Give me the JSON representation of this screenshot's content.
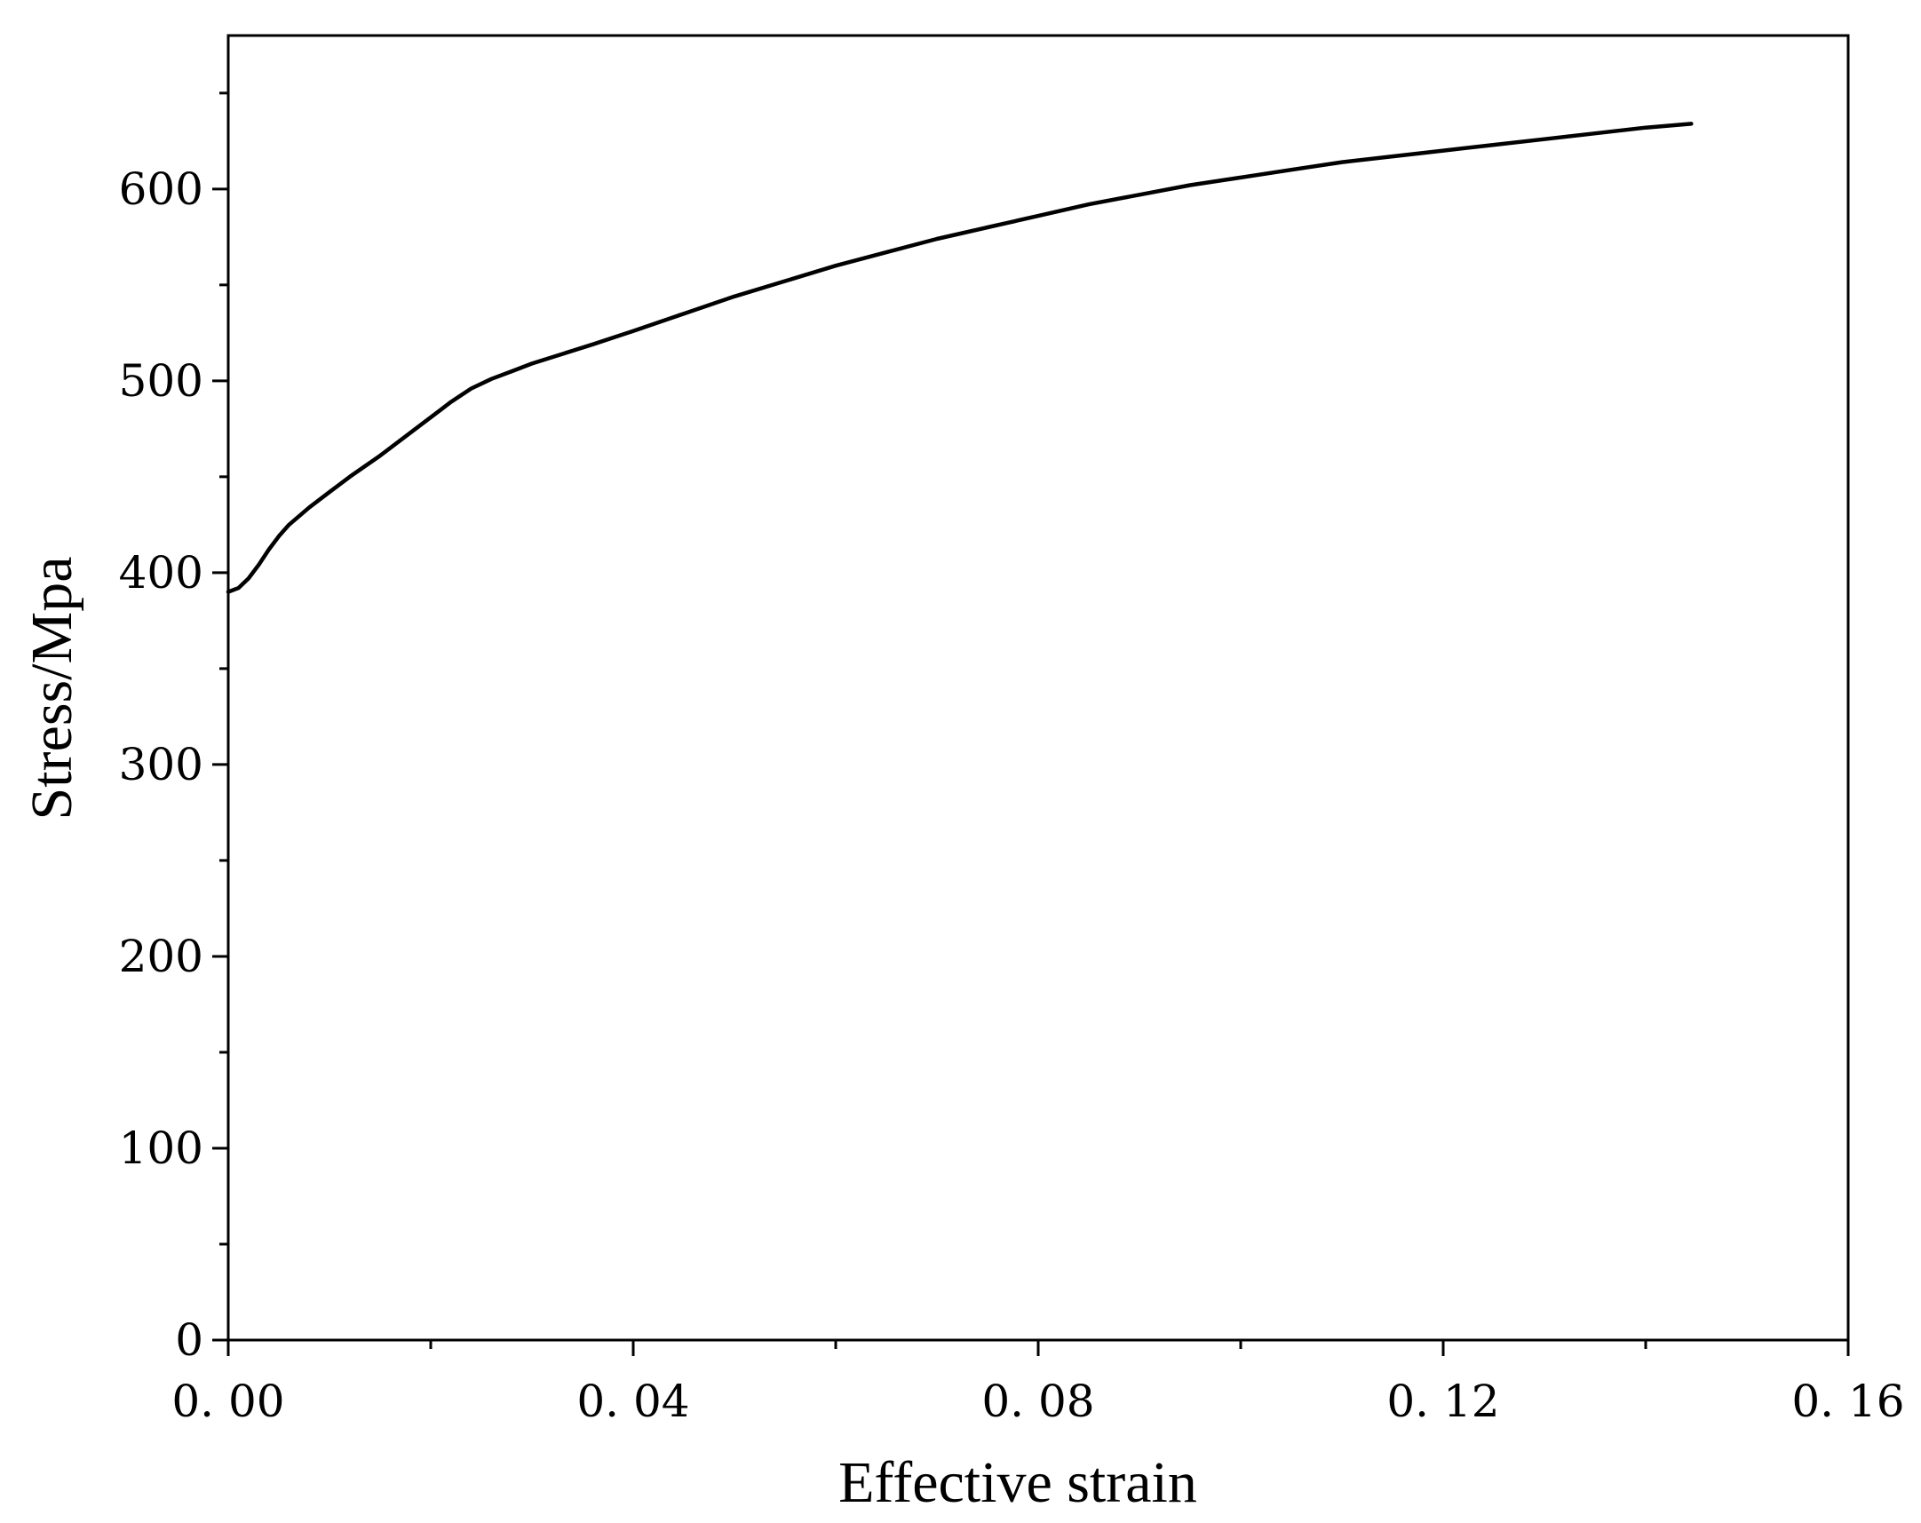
{
  "chart_data": {
    "type": "line",
    "title": "",
    "xlabel": "Effective strain",
    "ylabel": "Stress/Mpa",
    "xlim": [
      0,
      0.16
    ],
    "ylim": [
      0,
      680
    ],
    "xticks": [
      0,
      0.04,
      0.08,
      0.12,
      0.16
    ],
    "xtick_labels": [
      "0. 00",
      "0. 04",
      "0. 08",
      "0. 12",
      "0. 16"
    ],
    "yticks": [
      0,
      100,
      200,
      300,
      400,
      500,
      600
    ],
    "ytick_labels": [
      "0",
      "100",
      "200",
      "300",
      "400",
      "500",
      "600"
    ],
    "grid": false,
    "legend": "none",
    "line_color": "#000000",
    "series": [
      {
        "x": [
          0.0,
          0.001,
          0.002,
          0.003,
          0.004,
          0.005,
          0.006,
          0.008,
          0.01,
          0.012,
          0.015,
          0.018,
          0.021,
          0.022,
          0.024,
          0.026,
          0.028,
          0.03,
          0.033,
          0.036,
          0.04,
          0.045,
          0.05,
          0.055,
          0.06,
          0.065,
          0.07,
          0.075,
          0.08,
          0.085,
          0.09,
          0.095,
          0.1,
          0.105,
          0.11,
          0.115,
          0.12,
          0.125,
          0.13,
          0.135,
          0.14,
          0.1445
        ],
        "y": [
          390,
          392,
          397,
          404,
          412,
          419,
          425,
          434,
          442,
          450,
          461,
          473,
          485,
          489,
          496,
          501,
          505,
          509,
          514,
          519,
          526,
          535,
          544,
          552,
          560,
          567,
          574,
          580,
          586,
          592,
          597,
          602,
          606,
          610,
          614,
          617,
          620,
          623,
          626,
          629,
          632,
          634
        ]
      }
    ]
  }
}
